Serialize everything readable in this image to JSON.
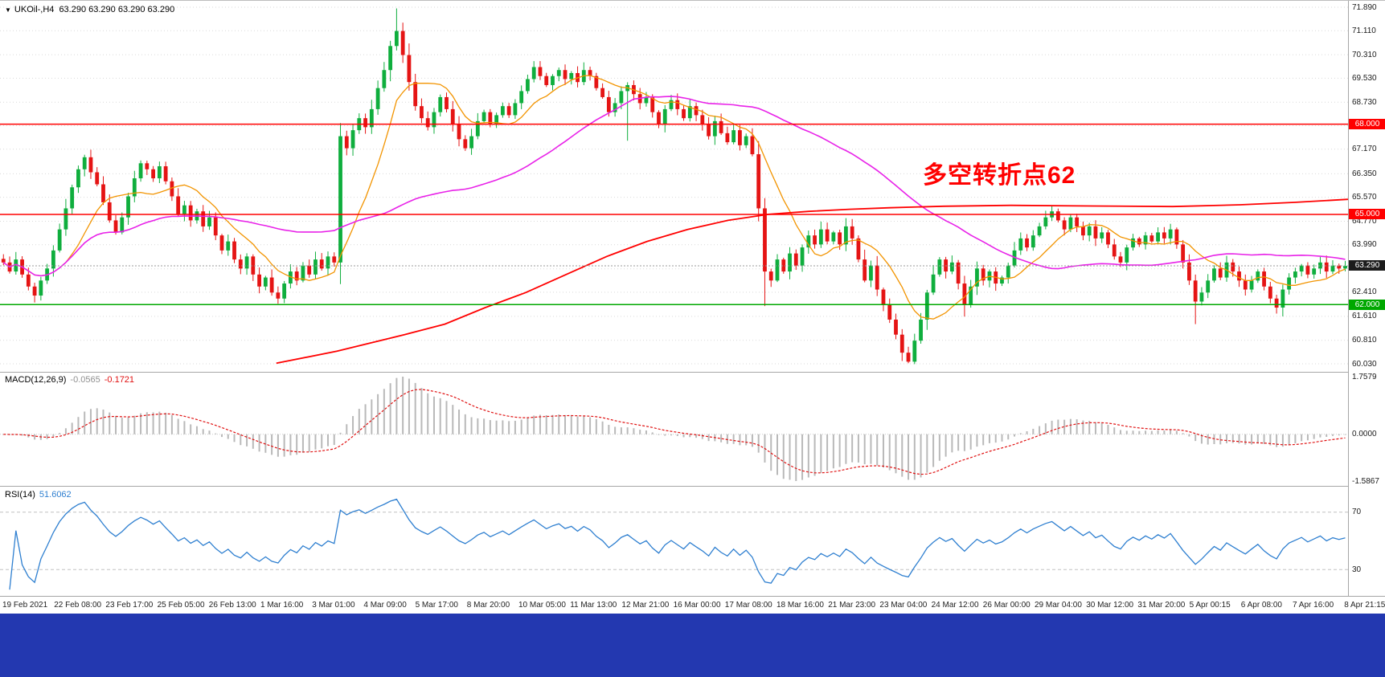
{
  "header": {
    "symbol_period": "UKOil-,H4",
    "ohlc": "63.290 63.290 63.290 63.290",
    "dropdown_icon": "chevron-down"
  },
  "annotation": {
    "text": "多空转折点62",
    "color": "#ff0000"
  },
  "colors": {
    "candle_up": "#0fae3d",
    "candle_down": "#e51414",
    "ma_fast": "#f29400",
    "ma_mid": "#e822e8",
    "ma_slow": "#ff0000",
    "grid": "#d9d9d9",
    "macd_histogram": "#b9b9b9",
    "macd_signal": "#e01010",
    "rsi_line": "#2e7fd0",
    "current_price_box": "#1c1c1c",
    "annotation": "#ff0000",
    "taskbar": "#2338b0",
    "level_red": "#ff0000",
    "level_green": "#00a800"
  },
  "indicators": {
    "macd": {
      "label": "MACD(12,26,9)",
      "value_main": "-0.0565",
      "value_signal": "-0.1721",
      "scale_max": "1.7579",
      "scale_zero": "0.0000",
      "scale_min": "-1.5867",
      "fast": 12,
      "slow": 26,
      "signal": 9
    },
    "rsi": {
      "label": "RSI(14)",
      "value": "51.6062",
      "period": 14,
      "levels": [
        "70",
        "30"
      ]
    }
  },
  "chart_data": {
    "type": "candlestick",
    "symbol": "UKOil-",
    "timeframe": "H4",
    "title": "UKOil- H4 candlestick chart with MACD(12,26,9) and RSI(14)",
    "y_axis": {
      "min": 60.03,
      "max": 71.89,
      "ticks": [
        71.89,
        71.11,
        70.31,
        69.53,
        68.73,
        67.95,
        67.17,
        66.35,
        65.57,
        64.77,
        63.99,
        63.19,
        62.41,
        61.61,
        60.81,
        60.03
      ]
    },
    "x_labels": [
      "19 Feb 2021",
      "22 Feb 08:00",
      "23 Feb 17:00",
      "25 Feb 05:00",
      "26 Feb 13:00",
      "1 Mar 16:00",
      "3 Mar 01:00",
      "4 Mar 09:00",
      "5 Mar 17:00",
      "8 Mar 20:00",
      "10 Mar 05:00",
      "11 Mar 13:00",
      "12 Mar 21:00",
      "16 Mar 00:00",
      "17 Mar 08:00",
      "18 Mar 16:00",
      "21 Mar 23:00",
      "23 Mar 04:00",
      "24 Mar 12:00",
      "26 Mar 00:00",
      "29 Mar 04:00",
      "30 Mar 12:00",
      "31 Mar 20:00",
      "5 Apr 00:15",
      "6 Apr 08:00",
      "7 Apr 16:00",
      "8 Apr 21:15"
    ],
    "closes": [
      63.4,
      63.1,
      63.5,
      63.0,
      62.6,
      62.3,
      62.8,
      63.2,
      63.8,
      64.5,
      65.2,
      65.9,
      66.5,
      66.9,
      66.4,
      66.0,
      65.4,
      64.8,
      64.4,
      64.9,
      65.6,
      66.2,
      66.7,
      66.5,
      66.2,
      66.6,
      66.1,
      65.6,
      65.0,
      65.3,
      64.8,
      65.1,
      64.6,
      64.9,
      64.3,
      63.8,
      64.1,
      63.5,
      63.2,
      63.6,
      63.0,
      62.6,
      62.9,
      62.4,
      62.2,
      62.7,
      63.1,
      62.8,
      63.3,
      63.0,
      63.5,
      63.2,
      63.6,
      63.4,
      67.6,
      67.2,
      67.8,
      68.2,
      67.9,
      68.5,
      69.2,
      69.8,
      70.6,
      71.1,
      70.3,
      69.4,
      68.6,
      68.2,
      67.9,
      68.4,
      68.9,
      68.5,
      68.0,
      67.5,
      67.2,
      67.6,
      68.1,
      68.4,
      68.0,
      68.3,
      68.6,
      68.3,
      68.7,
      69.1,
      69.5,
      69.9,
      69.6,
      69.3,
      69.6,
      69.8,
      69.5,
      69.7,
      69.4,
      69.8,
      69.6,
      69.2,
      68.9,
      68.4,
      68.7,
      69.1,
      69.3,
      69.0,
      68.7,
      68.9,
      68.4,
      68.0,
      68.5,
      68.8,
      68.5,
      68.2,
      68.6,
      68.3,
      68.0,
      67.6,
      68.1,
      67.7,
      67.4,
      67.8,
      67.3,
      67.6,
      67.0,
      65.2,
      63.1,
      62.8,
      63.5,
      63.1,
      63.7,
      63.3,
      63.9,
      64.3,
      64.0,
      64.5,
      64.1,
      64.4,
      64.0,
      64.6,
      64.2,
      63.5,
      62.8,
      63.3,
      62.5,
      62.0,
      61.5,
      61.0,
      60.4,
      60.1,
      60.8,
      61.5,
      62.4,
      63.0,
      63.5,
      63.1,
      63.4,
      62.7,
      62.0,
      62.6,
      63.2,
      62.8,
      63.1,
      62.7,
      62.9,
      63.3,
      63.8,
      64.2,
      63.9,
      64.3,
      64.6,
      64.9,
      65.1,
      64.8,
      64.5,
      64.9,
      64.6,
      64.3,
      64.6,
      64.2,
      64.4,
      64.0,
      63.6,
      63.4,
      63.9,
      64.2,
      64.0,
      64.3,
      64.1,
      64.4,
      64.2,
      64.5,
      64.0,
      63.4,
      62.8,
      62.1,
      62.4,
      62.8,
      63.2,
      62.9,
      63.4,
      63.1,
      62.8,
      62.5,
      62.8,
      63.1,
      62.6,
      62.2,
      61.9,
      62.5,
      62.9,
      63.1,
      63.3,
      63.0,
      63.2,
      63.4,
      63.1,
      63.3,
      63.2,
      63.29
    ],
    "current_price": 63.29,
    "current_price_label": "63.290",
    "levels": [
      {
        "price": 68.0,
        "label": "68.000",
        "color": "#ff0000"
      },
      {
        "price": 65.0,
        "label": "65.000",
        "color": "#ff0000"
      },
      {
        "price": 62.0,
        "label": "62.000",
        "color": "#00a800"
      }
    ],
    "ma_fast_period": 10,
    "ma_mid_period": 48,
    "ma_slow_points": [
      [
        0.205,
        60.05
      ],
      [
        0.25,
        60.45
      ],
      [
        0.3,
        61.0
      ],
      [
        0.33,
        61.35
      ],
      [
        0.36,
        61.9
      ],
      [
        0.39,
        62.4
      ],
      [
        0.42,
        63.0
      ],
      [
        0.45,
        63.6
      ],
      [
        0.48,
        64.1
      ],
      [
        0.51,
        64.5
      ],
      [
        0.54,
        64.8
      ],
      [
        0.57,
        65.0
      ],
      [
        0.6,
        65.1
      ],
      [
        0.63,
        65.17
      ],
      [
        0.66,
        65.22
      ],
      [
        0.7,
        65.27
      ],
      [
        0.75,
        65.3
      ],
      [
        0.81,
        65.28
      ],
      [
        0.87,
        65.26
      ],
      [
        0.92,
        65.32
      ],
      [
        0.96,
        65.4
      ],
      [
        1.0,
        65.5
      ]
    ],
    "wick_high_overrides": {
      "63": 71.85
    },
    "wick_low_overrides": {
      "100": 67.45,
      "122": 61.95,
      "145": 60.05,
      "154": 61.6,
      "191": 61.35,
      "204": 61.7
    }
  }
}
